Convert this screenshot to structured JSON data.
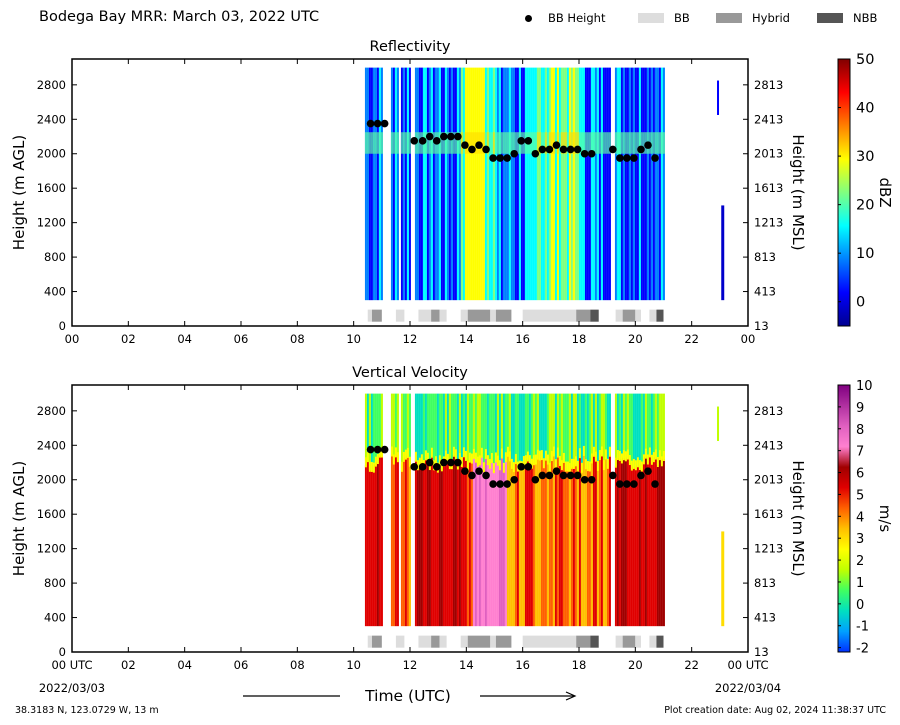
{
  "figure": {
    "title": "Bodega Bay MRR:  March 03, 2022 UTC",
    "coords": "38.3183 N, 123.0729 W, 13 m",
    "created": "Plot creation date: Aug 02, 2024 11:38:37 UTC",
    "xlabel": "Time (UTC)",
    "start_date": "2022/03/03",
    "end_date": "2022/03/04"
  },
  "legend": {
    "items": [
      {
        "label": "BB Height",
        "kind": "marker",
        "color": "#000000"
      },
      {
        "label": "BB",
        "kind": "swatch",
        "color": "#dddddd"
      },
      {
        "label": "Hybrid",
        "kind": "swatch",
        "color": "#999999"
      },
      {
        "label": "NBB",
        "kind": "swatch",
        "color": "#555555"
      }
    ]
  },
  "chart_data": [
    {
      "type": "heatmap",
      "title": "Reflectivity",
      "ylabel": "Height (m AGL)",
      "ylabel_right": "Height (m MSL)",
      "colorbar_label": "dBZ",
      "xlim": [
        0,
        24
      ],
      "ylim": [
        0,
        3100
      ],
      "xticks": [
        "00",
        "02",
        "04",
        "06",
        "08",
        "10",
        "12",
        "14",
        "16",
        "18",
        "20",
        "22",
        "00"
      ],
      "yticks_left": [
        "0",
        "400",
        "800",
        "1200",
        "1600",
        "2000",
        "2400",
        "2800"
      ],
      "yticks_right": [
        "13",
        "413",
        "813",
        "1213",
        "1613",
        "2013",
        "2413",
        "2813"
      ],
      "colorbar": {
        "min": -5,
        "max": 50,
        "ticks": [
          "0",
          "10",
          "20",
          "30",
          "40",
          "50"
        ],
        "colors": [
          "#00008f",
          "#0000ff",
          "#0080ff",
          "#00ffff",
          "#80ff80",
          "#ffff00",
          "#ff8000",
          "#ff0000",
          "#800000"
        ]
      },
      "data_extent": {
        "start_hour": 10.4,
        "end_hour": 21.0,
        "max_height": 3000
      },
      "bb_height": [
        [
          10.6,
          2350
        ],
        [
          10.85,
          2350
        ],
        [
          11.1,
          2350
        ],
        [
          12.15,
          2150
        ],
        [
          12.45,
          2150
        ],
        [
          12.7,
          2200
        ],
        [
          12.95,
          2150
        ],
        [
          13.2,
          2200
        ],
        [
          13.45,
          2200
        ],
        [
          13.7,
          2200
        ],
        [
          13.95,
          2100
        ],
        [
          14.2,
          2050
        ],
        [
          14.45,
          2100
        ],
        [
          14.7,
          2050
        ],
        [
          14.95,
          1950
        ],
        [
          15.2,
          1950
        ],
        [
          15.45,
          1950
        ],
        [
          15.7,
          2000
        ],
        [
          15.95,
          2150
        ],
        [
          16.2,
          2150
        ],
        [
          16.45,
          2000
        ],
        [
          16.7,
          2050
        ],
        [
          16.95,
          2050
        ],
        [
          17.2,
          2100
        ],
        [
          17.45,
          2050
        ],
        [
          17.7,
          2050
        ],
        [
          17.95,
          2050
        ],
        [
          18.2,
          2000
        ],
        [
          18.45,
          2000
        ],
        [
          19.2,
          2050
        ],
        [
          19.45,
          1950
        ],
        [
          19.7,
          1950
        ],
        [
          19.95,
          1950
        ],
        [
          20.2,
          2050
        ],
        [
          20.45,
          2100
        ],
        [
          20.7,
          1950
        ]
      ],
      "bb_types": [
        {
          "start": 10.5,
          "end": 10.65,
          "type": "BB"
        },
        {
          "start": 10.65,
          "end": 11.0,
          "type": "Hybrid"
        },
        {
          "start": 11.5,
          "end": 11.8,
          "type": "BB"
        },
        {
          "start": 12.3,
          "end": 12.75,
          "type": "BB"
        },
        {
          "start": 12.75,
          "end": 13.05,
          "type": "Hybrid"
        },
        {
          "start": 13.05,
          "end": 13.3,
          "type": "BB"
        },
        {
          "start": 13.8,
          "end": 14.05,
          "type": "BB"
        },
        {
          "start": 14.05,
          "end": 14.85,
          "type": "Hybrid"
        },
        {
          "start": 14.85,
          "end": 15.05,
          "type": "BB"
        },
        {
          "start": 15.05,
          "end": 15.6,
          "type": "Hybrid"
        },
        {
          "start": 16.0,
          "end": 17.9,
          "type": "BB"
        },
        {
          "start": 17.9,
          "end": 18.4,
          "type": "Hybrid"
        },
        {
          "start": 18.4,
          "end": 18.7,
          "type": "NBB"
        },
        {
          "start": 19.3,
          "end": 19.55,
          "type": "BB"
        },
        {
          "start": 19.55,
          "end": 20.0,
          "type": "Hybrid"
        },
        {
          "start": 20.0,
          "end": 20.2,
          "type": "BB"
        },
        {
          "start": 20.5,
          "end": 20.75,
          "type": "BB"
        },
        {
          "start": 20.75,
          "end": 21.0,
          "type": "NBB"
        }
      ]
    },
    {
      "type": "heatmap",
      "title": "Vertical Velocity",
      "ylabel": "Height (m AGL)",
      "ylabel_right": "Height (m MSL)",
      "colorbar_label": "m/s",
      "xlim": [
        0,
        24
      ],
      "ylim": [
        0,
        3100
      ],
      "xticks": [
        "00 UTC",
        "02",
        "04",
        "06",
        "08",
        "10",
        "12",
        "14",
        "16",
        "18",
        "20",
        "22",
        "00 UTC"
      ],
      "yticks_left": [
        "0",
        "400",
        "800",
        "1200",
        "1600",
        "2000",
        "2400",
        "2800"
      ],
      "yticks_right": [
        "13",
        "413",
        "813",
        "1213",
        "1613",
        "2013",
        "2413",
        "2813"
      ],
      "colorbar": {
        "min": -2.2,
        "max": 10,
        "ticks": [
          "-2",
          "-1",
          "0",
          "1",
          "2",
          "3",
          "4",
          "5",
          "6",
          "7",
          "8",
          "9",
          "10"
        ],
        "colors": [
          "#0030ff",
          "#00a0ff",
          "#00e0c0",
          "#40ff60",
          "#c0ff00",
          "#ffff00",
          "#ffc000",
          "#ff6000",
          "#e00000",
          "#a00000",
          "#ff80d0",
          "#e060c0",
          "#b030a0",
          "#800080"
        ]
      },
      "data_extent": {
        "start_hour": 10.4,
        "end_hour": 21.0,
        "max_height": 3000
      },
      "bb_height": [
        [
          10.6,
          2350
        ],
        [
          10.85,
          2350
        ],
        [
          11.1,
          2350
        ],
        [
          12.15,
          2150
        ],
        [
          12.45,
          2150
        ],
        [
          12.7,
          2200
        ],
        [
          12.95,
          2150
        ],
        [
          13.2,
          2200
        ],
        [
          13.45,
          2200
        ],
        [
          13.7,
          2200
        ],
        [
          13.95,
          2100
        ],
        [
          14.2,
          2050
        ],
        [
          14.45,
          2100
        ],
        [
          14.7,
          2050
        ],
        [
          14.95,
          1950
        ],
        [
          15.2,
          1950
        ],
        [
          15.45,
          1950
        ],
        [
          15.7,
          2000
        ],
        [
          15.95,
          2150
        ],
        [
          16.2,
          2150
        ],
        [
          16.45,
          2000
        ],
        [
          16.7,
          2050
        ],
        [
          16.95,
          2050
        ],
        [
          17.2,
          2100
        ],
        [
          17.45,
          2050
        ],
        [
          17.7,
          2050
        ],
        [
          17.95,
          2050
        ],
        [
          18.2,
          2000
        ],
        [
          18.45,
          2000
        ],
        [
          19.2,
          2050
        ],
        [
          19.45,
          1950
        ],
        [
          19.7,
          1950
        ],
        [
          19.95,
          1950
        ],
        [
          20.2,
          2050
        ],
        [
          20.45,
          2100
        ],
        [
          20.7,
          1950
        ]
      ],
      "bb_types": [
        {
          "start": 10.5,
          "end": 10.65,
          "type": "BB"
        },
        {
          "start": 10.65,
          "end": 11.0,
          "type": "Hybrid"
        },
        {
          "start": 11.5,
          "end": 11.8,
          "type": "BB"
        },
        {
          "start": 12.3,
          "end": 12.75,
          "type": "BB"
        },
        {
          "start": 12.75,
          "end": 13.05,
          "type": "Hybrid"
        },
        {
          "start": 13.05,
          "end": 13.3,
          "type": "BB"
        },
        {
          "start": 13.8,
          "end": 14.05,
          "type": "BB"
        },
        {
          "start": 14.05,
          "end": 14.85,
          "type": "Hybrid"
        },
        {
          "start": 14.85,
          "end": 15.05,
          "type": "BB"
        },
        {
          "start": 15.05,
          "end": 15.6,
          "type": "Hybrid"
        },
        {
          "start": 16.0,
          "end": 17.9,
          "type": "BB"
        },
        {
          "start": 17.9,
          "end": 18.4,
          "type": "Hybrid"
        },
        {
          "start": 18.4,
          "end": 18.7,
          "type": "NBB"
        },
        {
          "start": 19.3,
          "end": 19.55,
          "type": "BB"
        },
        {
          "start": 19.55,
          "end": 20.0,
          "type": "Hybrid"
        },
        {
          "start": 20.0,
          "end": 20.2,
          "type": "BB"
        },
        {
          "start": 20.5,
          "end": 20.75,
          "type": "BB"
        },
        {
          "start": 20.75,
          "end": 21.0,
          "type": "NBB"
        }
      ]
    }
  ]
}
